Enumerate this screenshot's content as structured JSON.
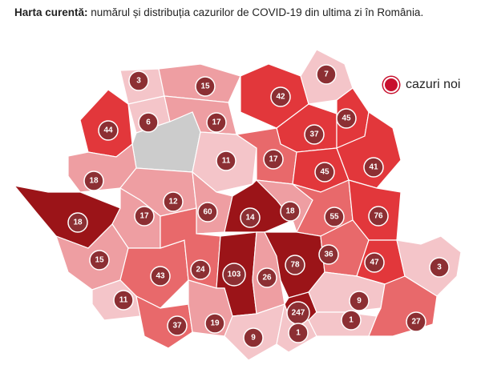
{
  "title": {
    "bold": "Harta curentă:",
    "rest": " numărul și distribuția cazurilor de COVID-19 din ultima zi în România."
  },
  "legend": {
    "label": "cazuri noi",
    "color": "#c8102e"
  },
  "colors": {
    "no_data": "#cccccc",
    "very_low": "#f4c5c9",
    "low": "#ee9ea2",
    "medium": "#e8696b",
    "high": "#e2373b",
    "very_high": "#9b1418",
    "bubble": "#8c2f33"
  },
  "counties": [
    {
      "value": "3",
      "level": "very_low"
    },
    {
      "value": "15",
      "level": "low"
    },
    {
      "value": "42",
      "level": "high"
    },
    {
      "value": "7",
      "level": "very_low"
    },
    {
      "value": "44",
      "level": "high"
    },
    {
      "value": "6",
      "level": "very_low"
    },
    {
      "value": "17",
      "level": "low"
    },
    {
      "value": "37",
      "level": "high"
    },
    {
      "value": "45",
      "level": "high"
    },
    {
      "value": "",
      "level": "no_data"
    },
    {
      "value": "11",
      "level": "very_low"
    },
    {
      "value": "17",
      "level": "medium"
    },
    {
      "value": "45",
      "level": "high"
    },
    {
      "value": "41",
      "level": "high"
    },
    {
      "value": "18",
      "level": "low"
    },
    {
      "value": "17",
      "level": "low"
    },
    {
      "value": "12",
      "level": "low"
    },
    {
      "value": "60",
      "level": "very_high"
    },
    {
      "value": "14",
      "level": "low"
    },
    {
      "value": "18",
      "level": "medium"
    },
    {
      "value": "55",
      "level": "high"
    },
    {
      "value": "76",
      "level": "very_high"
    },
    {
      "value": "18",
      "level": "low"
    },
    {
      "value": "15",
      "level": "low"
    },
    {
      "value": "43",
      "level": "medium"
    },
    {
      "value": "24",
      "level": "medium"
    },
    {
      "value": "103",
      "level": "very_high"
    },
    {
      "value": "26",
      "level": "low"
    },
    {
      "value": "78",
      "level": "very_high"
    },
    {
      "value": "36",
      "level": "medium"
    },
    {
      "value": "47",
      "level": "high"
    },
    {
      "value": "3",
      "level": "very_low"
    },
    {
      "value": "11",
      "level": "very_low"
    },
    {
      "value": "37",
      "level": "medium"
    },
    {
      "value": "19",
      "level": "low"
    },
    {
      "value": "9",
      "level": "very_low"
    },
    {
      "value": "247",
      "level": "very_high"
    },
    {
      "value": "1",
      "level": "very_low"
    },
    {
      "value": "9",
      "level": "very_low"
    },
    {
      "value": "1",
      "level": "very_low"
    },
    {
      "value": "27",
      "level": "medium"
    }
  ]
}
